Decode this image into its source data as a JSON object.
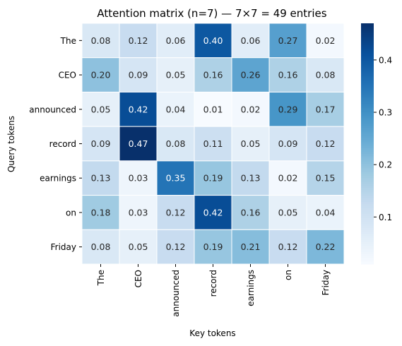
{
  "chart_data": {
    "type": "heatmap",
    "title": "Attention matrix  (n=7)  —  7×7 = 49 entries",
    "xlabel": "Key tokens",
    "ylabel": "Query tokens",
    "x_categories": [
      "The",
      "CEO",
      "announced",
      "record",
      "earnings",
      "on",
      "Friday"
    ],
    "y_categories": [
      "The",
      "CEO",
      "announced",
      "record",
      "earnings",
      "on",
      "Friday"
    ],
    "values": [
      [
        0.08,
        0.12,
        0.06,
        0.4,
        0.06,
        0.27,
        0.02
      ],
      [
        0.2,
        0.09,
        0.05,
        0.16,
        0.26,
        0.16,
        0.08
      ],
      [
        0.05,
        0.42,
        0.04,
        0.01,
        0.02,
        0.29,
        0.17
      ],
      [
        0.09,
        0.47,
        0.08,
        0.11,
        0.05,
        0.09,
        0.12
      ],
      [
        0.13,
        0.03,
        0.35,
        0.19,
        0.13,
        0.02,
        0.15
      ],
      [
        0.18,
        0.03,
        0.12,
        0.42,
        0.16,
        0.05,
        0.04
      ],
      [
        0.08,
        0.05,
        0.12,
        0.19,
        0.21,
        0.12,
        0.22
      ]
    ],
    "colormap": "Blues",
    "value_range": [
      0.01,
      0.47
    ],
    "colorbar_ticks": [
      0.1,
      0.2,
      0.3,
      0.4
    ],
    "colorbar_tick_labels": [
      "0.1",
      "0.2",
      "0.3",
      "0.4"
    ],
    "legend": "colorbar-right",
    "grid": false
  }
}
